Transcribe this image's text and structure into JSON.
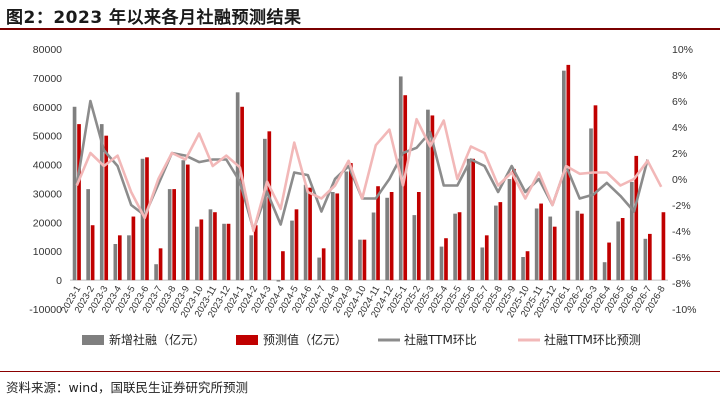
{
  "title": "图2：2023 年以来各月社融预测结果",
  "source": "资料来源：wind，国联民生证券研究所预测",
  "colors": {
    "actual_bar": "#7f7f7f",
    "forecast_bar": "#c00000",
    "ttm_line": "#8c8c8c",
    "ttm_forecast_line": "#f2b8b8",
    "title_rule": "#7a0000"
  },
  "chart_data": {
    "type": "bar",
    "title": "",
    "xlabel": "",
    "ylabel": "",
    "ylim": [
      -10000,
      80000
    ],
    "y2lim": [
      -10,
      10
    ],
    "yticks": [
      "-10000",
      "0",
      "10000",
      "20000",
      "30000",
      "40000",
      "50000",
      "60000",
      "70000",
      "80000"
    ],
    "y2ticks": [
      "-10%",
      "-8%",
      "-6%",
      "-4%",
      "-2%",
      "0%",
      "2%",
      "4%",
      "6%",
      "8%",
      "10%"
    ],
    "categories": [
      "2023-1",
      "2023-2",
      "2023-3",
      "2023-4",
      "2023-5",
      "2023-6",
      "2023-7",
      "2023-8",
      "2023-9",
      "2023-10",
      "2023-11",
      "2023-12",
      "2024-1",
      "2024-2",
      "2024-3",
      "2024-4",
      "2024-5",
      "2024-6",
      "2024-7",
      "2024-8",
      "2024-9",
      "2024-10",
      "2024-11",
      "2024-12",
      "2025-1",
      "2025-2",
      "2025-3",
      "2025-4",
      "2025-5",
      "2025-6",
      "2025-7",
      "2025-8",
      "2025-9",
      "2025-10",
      "2025-11",
      "2025-12",
      "2026-1",
      "2026-2",
      "2026-3",
      "2026-4",
      "2026-5",
      "2026-6",
      "2026-7",
      "2026-8"
    ],
    "series": [
      {
        "name": "新增社融（亿元）",
        "type": "bar",
        "axis": "left",
        "values": [
          60000,
          31500,
          54000,
          12500,
          15500,
          42000,
          5500,
          31500,
          41500,
          18500,
          24500,
          19500,
          65000,
          15500,
          48900,
          -500,
          20600,
          33000,
          7800,
          30500,
          37600,
          14000,
          23400,
          28500,
          70500,
          22500,
          59000,
          11600,
          23000,
          42000,
          11300,
          25800,
          35000,
          8000,
          24800,
          22000,
          72500,
          24000,
          52500,
          6200,
          20300,
          34000,
          14300,
          null
        ]
      },
      {
        "name": "预测值（亿元）",
        "type": "bar",
        "axis": "left",
        "values": [
          54000,
          19000,
          50000,
          15500,
          22000,
          42500,
          11000,
          31500,
          40000,
          21000,
          23500,
          19500,
          60000,
          19000,
          51500,
          10000,
          24500,
          32000,
          11000,
          30000,
          40500,
          14000,
          32500,
          30500,
          64000,
          30500,
          57000,
          14500,
          23500,
          42000,
          15500,
          27000,
          38500,
          10000,
          26500,
          18500,
          74500,
          23000,
          60500,
          13000,
          21500,
          43000,
          16000,
          23500
        ]
      },
      {
        "name": "社融TTM环比",
        "type": "line",
        "axis": "right",
        "values": [
          -0.5,
          6.0,
          2.2,
          1.0,
          -2.0,
          -2.8,
          -0.4,
          2.0,
          1.8,
          1.3,
          1.5,
          1.5,
          -0.2,
          -3.9,
          -1.0,
          -3.5,
          0.5,
          0.3,
          -2.5,
          0.0,
          1.0,
          -1.5,
          -1.5,
          0.0,
          2.0,
          2.4,
          3.6,
          -0.5,
          -0.5,
          1.5,
          1.0,
          -1.0,
          1.0,
          -1.0,
          0.0,
          -2.0,
          1.0,
          -1.5,
          -1.2,
          -0.3,
          -1.3,
          -2.5,
          1.5,
          null
        ]
      },
      {
        "name": "社融TTM环比预测",
        "type": "line",
        "axis": "right",
        "values": [
          -0.5,
          2.0,
          1.0,
          1.8,
          -1.0,
          -3.0,
          0.0,
          2.0,
          1.5,
          3.5,
          1.0,
          1.8,
          0.9,
          -4.0,
          -0.2,
          -2.3,
          2.8,
          -1.0,
          -1.5,
          -0.5,
          1.4,
          -1.5,
          2.6,
          3.8,
          -0.5,
          4.6,
          2.5,
          4.5,
          0.0,
          2.5,
          2.0,
          -0.5,
          0.5,
          -1.5,
          0.5,
          -2.0,
          1.0,
          0.4,
          0.5,
          0.5,
          -0.5,
          0.0,
          1.4,
          -0.6
        ]
      }
    ],
    "legend": "bottom",
    "grid": false
  }
}
